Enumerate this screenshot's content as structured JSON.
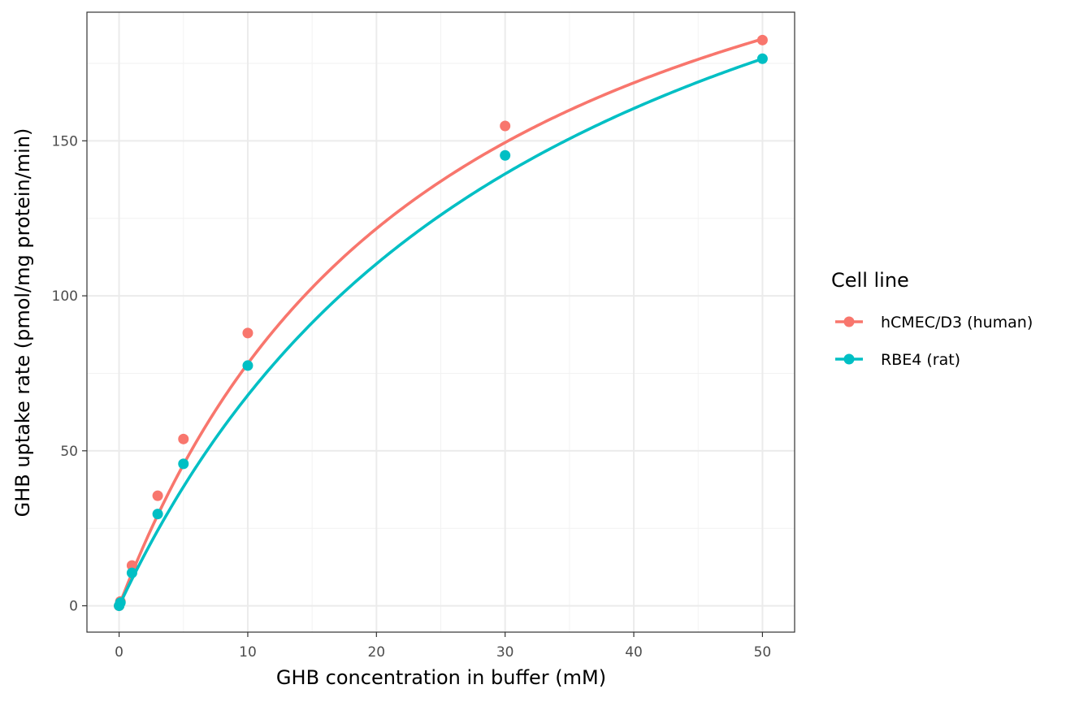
{
  "chart_data": {
    "type": "line",
    "xlabel": "GHB concentration in buffer (mM)",
    "ylabel": "GHB uptake rate (pmol/mg protein/min)",
    "xlim": [
      -2.5,
      52.5
    ],
    "ylim": [
      -8.5,
      191.5
    ],
    "x_ticks": [
      0,
      10,
      20,
      30,
      40,
      50
    ],
    "y_ticks": [
      0,
      50,
      100,
      150
    ],
    "grid": true,
    "legend": {
      "title": "Cell line",
      "position": "right"
    },
    "series": [
      {
        "name": "hCMEC/D3 (human)",
        "color": "#F8766D",
        "points": [
          [
            0,
            0
          ],
          [
            0.1,
            1.4
          ],
          [
            1,
            13
          ],
          [
            3,
            35.5
          ],
          [
            5,
            53.8
          ],
          [
            10,
            88
          ],
          [
            30,
            154.8
          ],
          [
            50,
            182.5
          ]
        ],
        "curve": {
          "vmax": 275,
          "km": 25.2
        }
      },
      {
        "name": "RBE4 (rat)",
        "color": "#00BFC4",
        "points": [
          [
            0,
            0
          ],
          [
            0.1,
            1
          ],
          [
            1,
            10.6
          ],
          [
            3,
            29.6
          ],
          [
            5,
            45.8
          ],
          [
            10,
            77.5
          ],
          [
            30,
            145.3
          ],
          [
            50,
            176.5
          ]
        ],
        "curve": {
          "vmax": 294,
          "km": 33.3
        }
      }
    ]
  }
}
